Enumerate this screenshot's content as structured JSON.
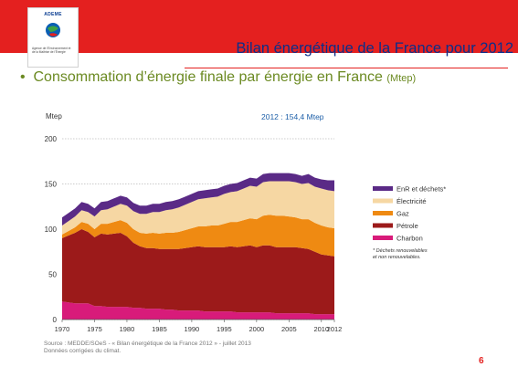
{
  "header": {
    "logo_word": "ADEME",
    "logo_text": "Agence de l'Environnement et de la Maîtrise de l'Énergie",
    "title": "Bilan énergétique de la France pour 2012"
  },
  "bullet": {
    "symbol": "•",
    "text": "Consommation d’énergie finale par énergie en France ",
    "unit": "(Mtep)"
  },
  "footer": {
    "source": "Source : MEDDE/SOeS - « Bilan énergétique de la France 2012 » - juillet 2013",
    "note": "Données corrigées du climat.",
    "page": "6"
  },
  "colors": {
    "brand_red": "#e4201f",
    "title_blue": "#0b2f8a",
    "bullet_green": "#6b8a22"
  },
  "chart_data": {
    "type": "area",
    "stacked": true,
    "ylabel": "Mtep",
    "annotation": "2012 : 154,4 Mtep",
    "ylim": [
      0,
      200
    ],
    "yticks": [
      0,
      50,
      100,
      150,
      200
    ],
    "xticks": [
      1970,
      1975,
      1980,
      1985,
      1990,
      1995,
      2000,
      2005,
      2010,
      2012
    ],
    "grid": true,
    "legend_position": "right",
    "legend_footnote": "* Déchets renouvelables et non renouvelables.",
    "x": [
      1970,
      1971,
      1972,
      1973,
      1974,
      1975,
      1976,
      1977,
      1978,
      1979,
      1980,
      1981,
      1982,
      1983,
      1984,
      1985,
      1986,
      1987,
      1988,
      1989,
      1990,
      1991,
      1992,
      1993,
      1994,
      1995,
      1996,
      1997,
      1998,
      1999,
      2000,
      2001,
      2002,
      2003,
      2004,
      2005,
      2006,
      2007,
      2008,
      2009,
      2010,
      2011,
      2012
    ],
    "series": [
      {
        "name": "Charbon",
        "color": "#d81b7a",
        "values": [
          20,
          19,
          18,
          18,
          18,
          15,
          15,
          14,
          14,
          14,
          14,
          13,
          13,
          12,
          12,
          12,
          11,
          11,
          10,
          10,
          10,
          10,
          9,
          9,
          9,
          9,
          9,
          8,
          8,
          8,
          8,
          8,
          8,
          7,
          7,
          7,
          7,
          7,
          7,
          6,
          6,
          6,
          6
        ]
      },
      {
        "name": "Pétrole",
        "color": "#9c1a1a",
        "values": [
          70,
          74,
          78,
          82,
          79,
          76,
          80,
          80,
          81,
          82,
          78,
          72,
          68,
          67,
          67,
          66,
          67,
          67,
          68,
          69,
          70,
          71,
          71,
          71,
          71,
          71,
          72,
          72,
          73,
          74,
          72,
          74,
          74,
          73,
          73,
          73,
          73,
          72,
          71,
          69,
          66,
          65,
          64
        ]
      },
      {
        "name": "Gaz",
        "color": "#ef8a12",
        "values": [
          4,
          5,
          6,
          8,
          9,
          9,
          11,
          12,
          13,
          14,
          15,
          15,
          15,
          16,
          17,
          17,
          18,
          18,
          19,
          20,
          21,
          22,
          23,
          24,
          24,
          26,
          27,
          28,
          29,
          30,
          31,
          33,
          34,
          35,
          35,
          34,
          33,
          32,
          33,
          32,
          32,
          31,
          31
        ]
      },
      {
        "name": "Électricité",
        "color": "#f6d7a3",
        "values": [
          10,
          11,
          12,
          13,
          13,
          14,
          15,
          16,
          17,
          18,
          19,
          20,
          21,
          22,
          23,
          24,
          25,
          26,
          27,
          28,
          29,
          30,
          31,
          31,
          32,
          33,
          33,
          34,
          35,
          36,
          36,
          37,
          37,
          38,
          38,
          39,
          39,
          39,
          40,
          40,
          41,
          41,
          41
        ]
      },
      {
        "name": "EnR et déchets*",
        "color": "#5a2a86",
        "values": [
          9,
          9,
          9,
          9,
          9,
          9,
          9,
          9,
          9,
          9,
          9,
          9,
          9,
          9,
          9,
          9,
          9,
          9,
          9,
          9,
          9,
          9,
          9,
          9,
          9,
          9,
          9,
          9,
          9,
          9,
          9,
          9,
          9,
          9,
          9,
          9,
          9,
          9,
          10,
          10,
          10,
          11,
          12
        ]
      }
    ]
  }
}
